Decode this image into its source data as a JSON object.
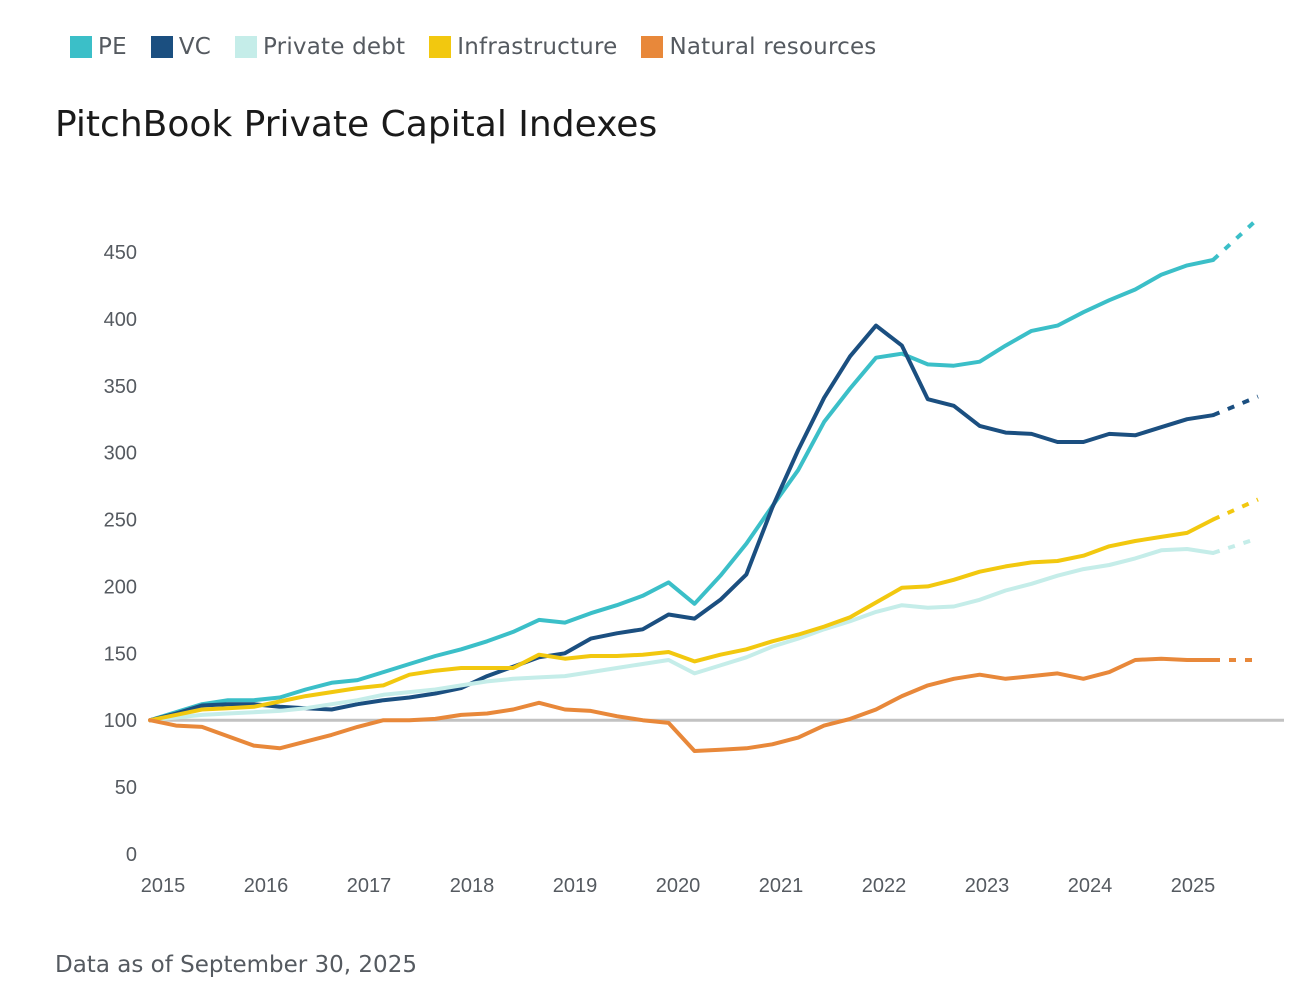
{
  "legend": [
    {
      "label": "PE",
      "color": "#3bbfc8"
    },
    {
      "label": "VC",
      "color": "#1b4f80"
    },
    {
      "label": "Private debt",
      "color": "#c5ede9"
    },
    {
      "label": "Infrastructure",
      "color": "#f2c80f"
    },
    {
      "label": "Natural resources",
      "color": "#e8883a"
    }
  ],
  "title": "PitchBook Private Capital Indexes",
  "footnote": "Data as of September 30, 2025",
  "chart_data": {
    "type": "line",
    "title": "PitchBook Private Capital Indexes",
    "xlabel": "",
    "ylabel": "",
    "x_start": 2014.875,
    "x_step_years": 0.25,
    "xlim": [
      2014.875,
      2025.8
    ],
    "ylim": [
      0,
      450
    ],
    "yticks": [
      0,
      50,
      100,
      150,
      200,
      250,
      300,
      350,
      400,
      450
    ],
    "xticks": [
      "2015",
      "2016",
      "2017",
      "2018",
      "2019",
      "2020",
      "2021",
      "2022",
      "2023",
      "2024",
      "2025"
    ],
    "baseline": 100,
    "grid": false,
    "legend_position": "top-left",
    "series": [
      {
        "name": "PE",
        "color": "#3bbfc8",
        "values": [
          100,
          106,
          112,
          115,
          115,
          117,
          123,
          128,
          130,
          136,
          142,
          148,
          153,
          159,
          166,
          175,
          173,
          180,
          186,
          193,
          203,
          187,
          208,
          232,
          260,
          287,
          323,
          348,
          371,
          374,
          366,
          365,
          368,
          380,
          391,
          395,
          405,
          414,
          422,
          433,
          440,
          444
        ],
        "projection": 475
      },
      {
        "name": "VC",
        "color": "#1b4f80",
        "values": [
          100,
          105,
          111,
          112,
          112,
          110,
          109,
          108,
          112,
          115,
          117,
          120,
          124,
          133,
          140,
          147,
          150,
          161,
          165,
          168,
          179,
          176,
          190,
          209,
          259,
          302,
          341,
          372,
          395,
          380,
          340,
          335,
          320,
          315,
          314,
          308,
          308,
          314,
          313,
          319,
          325,
          328
        ],
        "projection": 342
      },
      {
        "name": "Private debt",
        "color": "#c5ede9",
        "values": [
          100,
          102,
          104,
          105,
          106,
          107,
          109,
          112,
          115,
          119,
          121,
          123,
          126,
          129,
          131,
          132,
          133,
          136,
          139,
          142,
          145,
          135,
          141,
          147,
          155,
          161,
          168,
          174,
          181,
          186,
          184,
          185,
          190,
          197,
          202,
          208,
          213,
          216,
          221,
          227,
          228,
          225
        ],
        "projection": 236
      },
      {
        "name": "Infrastructure",
        "color": "#f2c80f",
        "values": [
          100,
          104,
          108,
          109,
          110,
          114,
          118,
          121,
          124,
          126,
          134,
          137,
          139,
          139,
          139,
          149,
          146,
          148,
          148,
          149,
          151,
          144,
          149,
          153,
          159,
          164,
          170,
          177,
          188,
          199,
          200,
          205,
          211,
          215,
          218,
          219,
          223,
          230,
          234,
          237,
          240,
          250
        ],
        "projection": 265
      },
      {
        "name": "Natural resources",
        "color": "#e8883a",
        "values": [
          100,
          96,
          95,
          88,
          81,
          79,
          84,
          89,
          95,
          100,
          100,
          101,
          104,
          105,
          108,
          113,
          108,
          107,
          103,
          100,
          98,
          77,
          78,
          79,
          82,
          87,
          96,
          101,
          108,
          118,
          126,
          131,
          134,
          131,
          133,
          135,
          131,
          136,
          145,
          146,
          145,
          145
        ],
        "projection": 145
      }
    ]
  }
}
